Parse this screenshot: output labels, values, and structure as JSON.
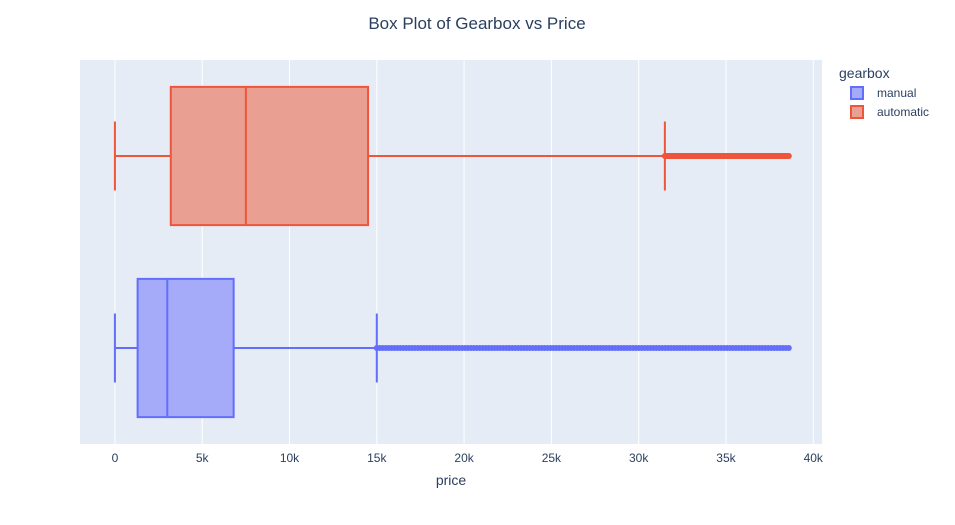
{
  "chart_data": {
    "type": "box",
    "orientation": "horizontal",
    "title": "Box Plot of Gearbox vs Price",
    "xlabel": "price",
    "ylabel": "",
    "xlim": [
      -2000,
      40500
    ],
    "x_ticks": [
      0,
      5000,
      10000,
      15000,
      20000,
      25000,
      30000,
      35000,
      40000
    ],
    "x_tick_labels": [
      "0",
      "5k",
      "10k",
      "15k",
      "20k",
      "25k",
      "30k",
      "35k",
      "40k"
    ],
    "legend": {
      "title": "gearbox",
      "placement": "top-right, outside plot"
    },
    "grid": true,
    "plot_background": "#e5ecf6",
    "series": [
      {
        "name": "manual",
        "color": "#636efa",
        "fill": "#a5abf9",
        "min": 0,
        "q1": 1300,
        "median": 3000,
        "q3": 6800,
        "upper_fence": 15000,
        "outliers_from": 15000,
        "outliers_to": 38600
      },
      {
        "name": "automatic",
        "color": "#ef553b",
        "fill": "#e9a093",
        "min": 0,
        "q1": 3200,
        "median": 7500,
        "q3": 14500,
        "upper_fence": 31500,
        "outliers_from": 31500,
        "outliers_to": 38600
      }
    ]
  }
}
